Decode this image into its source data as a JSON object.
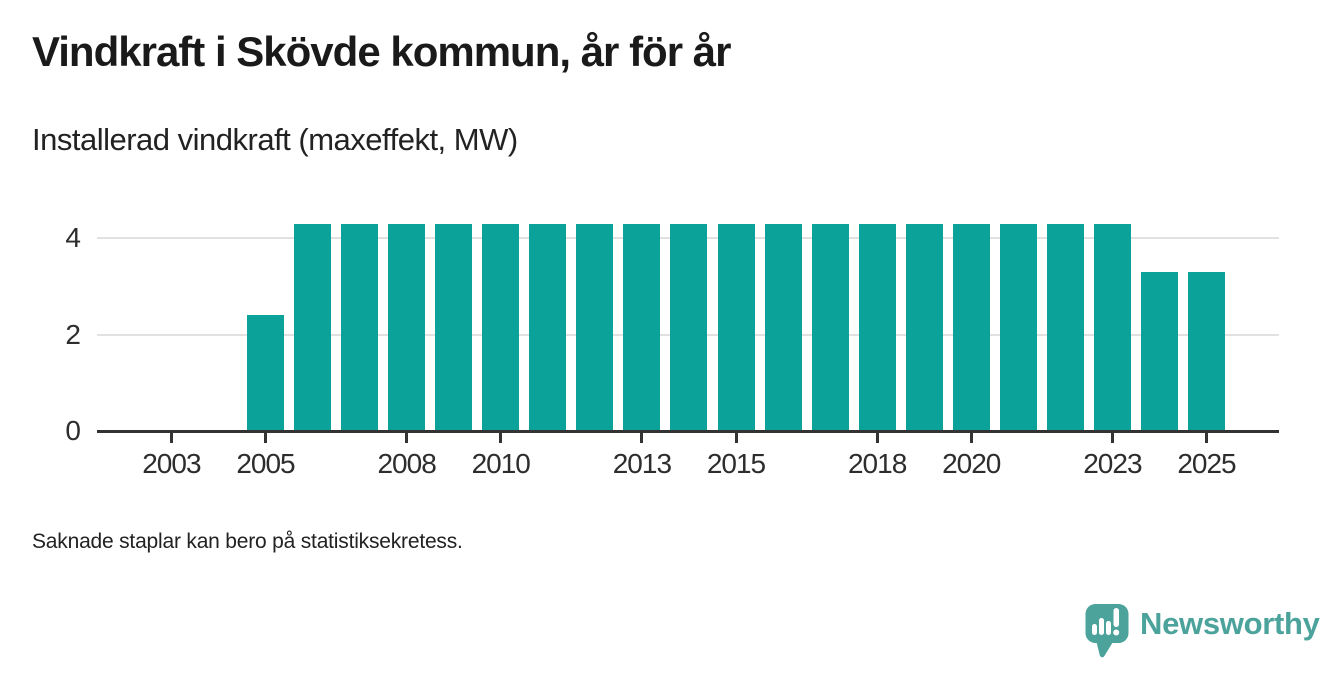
{
  "header": {
    "title": "Vindkraft i Skövde kommun, år för år",
    "subtitle": "Installerad vindkraft (maxeffekt, MW)"
  },
  "footnote": "Saknade staplar kan bero på statistiksekretess.",
  "branding": {
    "name": "Newsworthy",
    "logo_icon": "newsworthy-speech-bubble-barchart-icon",
    "color": "#4ba39b"
  },
  "colors": {
    "bar": "#0ba29a",
    "axis": "#333333",
    "grid": "#e1e1e1",
    "text": "#2d2d2d",
    "title": "#1a1a1a"
  },
  "chart_data": {
    "type": "bar",
    "title": "Vindkraft i Skövde kommun, år för år",
    "subtitle": "Installerad vindkraft (maxeffekt, MW)",
    "unit": "MW",
    "x": [
      2002,
      2003,
      2004,
      2005,
      2006,
      2007,
      2008,
      2009,
      2010,
      2011,
      2012,
      2013,
      2014,
      2015,
      2016,
      2017,
      2018,
      2019,
      2020,
      2021,
      2022,
      2023,
      2024,
      2025
    ],
    "values": [
      null,
      null,
      null,
      2.4,
      4.3,
      4.3,
      4.3,
      4.3,
      4.3,
      4.3,
      4.3,
      4.3,
      4.3,
      4.3,
      4.3,
      4.3,
      4.3,
      4.3,
      4.3,
      4.3,
      4.3,
      4.3,
      3.3,
      3.3
    ],
    "x_ticks": [
      2003,
      2005,
      2008,
      2010,
      2013,
      2015,
      2018,
      2020,
      2023,
      2025
    ],
    "y_ticks": [
      0,
      2,
      4
    ],
    "ylim": [
      0,
      4.6
    ],
    "grid": "horizontal",
    "legend": "none",
    "bar_color": "#0ba29a",
    "missing_bars_note": "Saknade staplar kan bero på statistiksekretess."
  }
}
